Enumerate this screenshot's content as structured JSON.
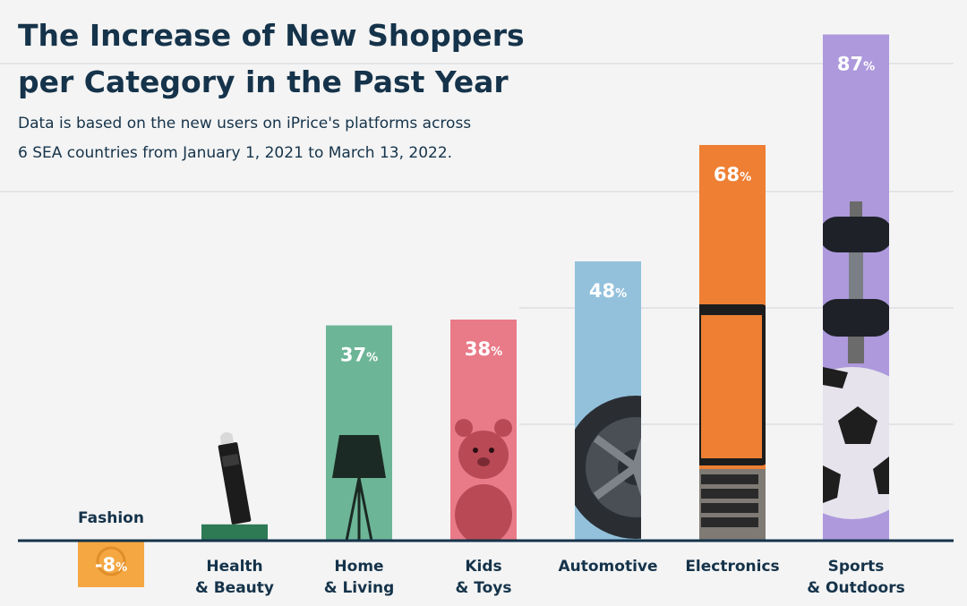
{
  "title_line1": "The Increase of New Shoppers",
  "title_line2": "per Category in the Past Year",
  "subtitle_line1": "Data is based on the new users on iPrice's platforms across",
  "subtitle_line2": "6 SEA countries from January 1, 2021 to March 13, 2022.",
  "chart_data": {
    "type": "bar",
    "unit": "%",
    "categories": [
      [
        "Fashion"
      ],
      [
        "Health",
        "& Beauty"
      ],
      [
        "Home",
        "& Living"
      ],
      [
        "Kids",
        "& Toys"
      ],
      [
        "Automotive"
      ],
      [
        "Electronics"
      ],
      [
        "Sports",
        "& Outdoors"
      ]
    ],
    "values": [
      -8,
      2.8,
      37,
      38,
      48,
      68,
      87
    ],
    "data_labels": [
      "-8",
      "",
      "37",
      "38",
      "48",
      "68",
      "87"
    ],
    "colors": [
      "#f5a742",
      "#2d7a55",
      "#6db597",
      "#e97a88",
      "#93c1dc",
      "#ee7f33",
      "#ad99dc"
    ],
    "icons": [
      "stopwatch-icon",
      "lipstick-icon",
      "floor-lamp-icon",
      "teddy-bear-icon",
      "tire-icon",
      "laptop-icon",
      "dumbbell-and-football-icon"
    ],
    "ylim": [
      -8,
      87
    ],
    "grid": true
  }
}
